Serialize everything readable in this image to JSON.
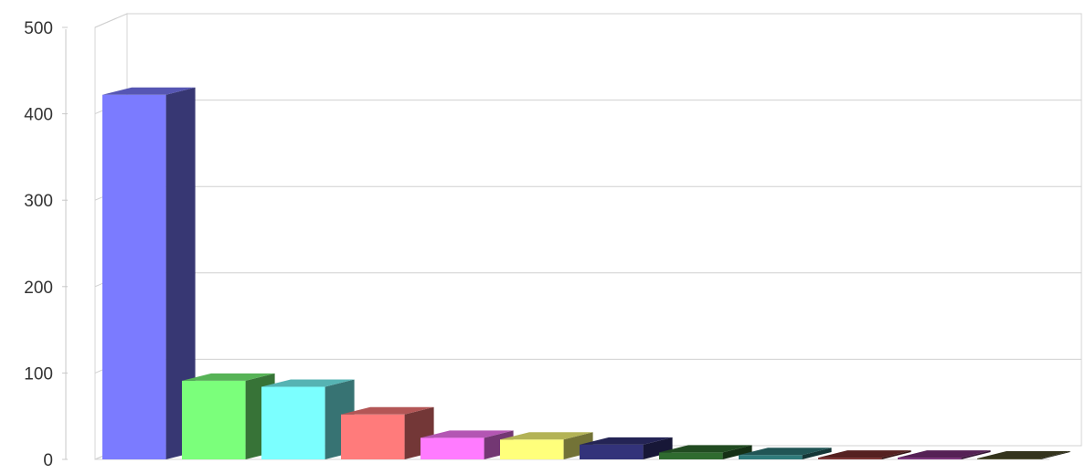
{
  "chart_data": {
    "type": "bar",
    "title": "",
    "xlabel": "",
    "ylabel": "",
    "ylim": [
      0,
      500
    ],
    "yticks": [
      "0",
      "100",
      "200",
      "300",
      "400",
      "500"
    ],
    "grid": true,
    "categories": [
      "",
      "",
      "",
      "",
      "",
      "",
      "",
      "",
      "",
      "",
      "",
      ""
    ],
    "values": [
      422,
      91,
      84,
      52,
      25,
      23,
      17,
      8,
      5,
      2,
      2,
      1
    ],
    "colors": [
      "#7b7bff",
      "#7bff7b",
      "#7bffff",
      "#ff7b7b",
      "#ff7bff",
      "#ffff7b",
      "#33337a",
      "#2f6b2f",
      "#2f7a7a",
      "#7a2f2f",
      "#7a2f7a",
      "#4a4a2a"
    ]
  }
}
